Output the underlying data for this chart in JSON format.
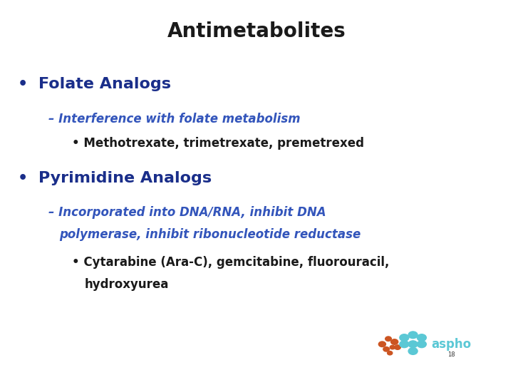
{
  "title": "Antimetabolites",
  "title_color": "#1a1a1a",
  "title_fontsize": 20,
  "background_color": "#ffffff",
  "bullet1_text": "Folate Analogs",
  "bullet1_color": "#1a2e8a",
  "bullet1_fontsize": 16,
  "sub1_text": "– Interference with folate metabolism",
  "sub1_color": "#3355bb",
  "sub1_fontsize": 12,
  "subsub1_text": "• Methotrexate, trimetrexate, premetrexed",
  "subsub1_color": "#1a1a1a",
  "subsub1_fontsize": 12,
  "bullet2_text": "Pyrimidine Analogs",
  "bullet2_color": "#1a2e8a",
  "bullet2_fontsize": 16,
  "sub2_line1": "– Incorporated into DNA/RNA, inhibit DNA",
  "sub2_line2": "   polymerase, inhibit ribonucleotide reductase",
  "sub2_color": "#3355bb",
  "sub2_fontsize": 12,
  "subsub2_line1": "• Cytarabine (Ara-C), gemcitabine, fluorouracil,",
  "subsub2_line2": "   hydroxyurea",
  "subsub2_color": "#1a1a1a",
  "subsub2_fontsize": 12,
  "aspho_text": "aspho",
  "aspho_color": "#5bc8d5",
  "aspho_fontsize": 12,
  "page_num": "18",
  "page_num_color": "#333333",
  "page_num_fontsize": 6,
  "orange_color": "#cc5522",
  "teal_color": "#5bc8d5"
}
